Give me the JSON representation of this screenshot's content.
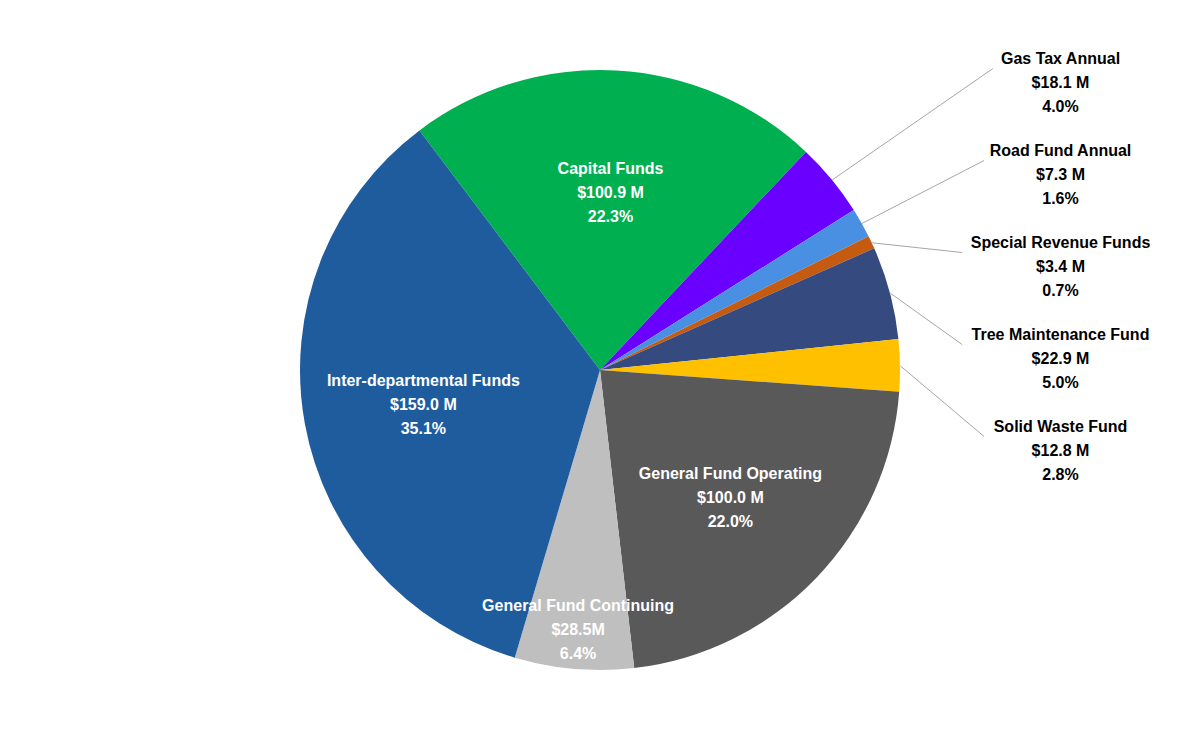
{
  "chart_data": {
    "type": "pie",
    "categories": [
      "Capital Funds",
      "Gas Tax Annual",
      "Road Fund Annual",
      "Special Revenue Funds",
      "Tree Maintenance Fund",
      "Solid Waste Fund",
      "General Fund Operating",
      "General Fund Continuing",
      "Inter-departmental Funds"
    ],
    "values": [
      22.3,
      4.0,
      1.6,
      0.7,
      5.0,
      2.8,
      22.0,
      6.4,
      35.1
    ],
    "value_labels": [
      "22.3%",
      "4.0%",
      "1.6%",
      "0.7%",
      "5.0%",
      "2.8%",
      "22.0%",
      "6.4%",
      "35.1%"
    ],
    "amounts": [
      100.9,
      18.1,
      7.3,
      3.4,
      22.9,
      12.8,
      100.0,
      28.5,
      159.0
    ],
    "amount_labels": [
      "$100.9 M",
      "$18.1 M",
      "$7.3 M",
      "$3.4 M",
      "$22.9 M",
      "$12.8 M",
      "$100.0 M",
      "$28.5M",
      "$159.0 M"
    ],
    "colors": [
      "#00B050",
      "#6A00FF",
      "#4A90E2",
      "#C55A11",
      "#354A7E",
      "#FFC000",
      "#595959",
      "#BFBFBF",
      "#1F5C9E"
    ],
    "data_labels": true
  }
}
